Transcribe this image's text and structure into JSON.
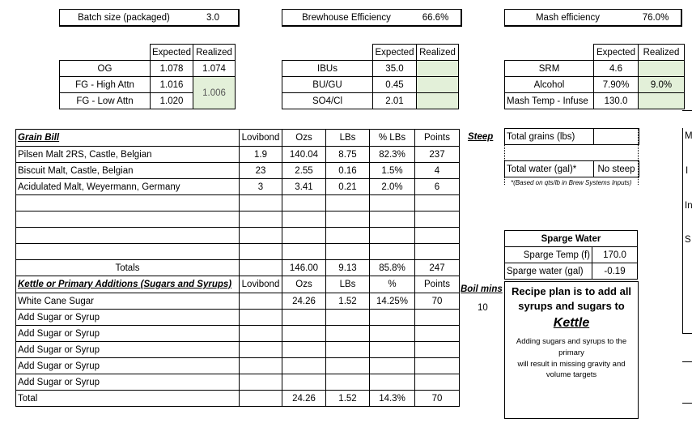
{
  "header": {
    "batch_size_label": "Batch size (packaged)",
    "batch_size_value": "3.0",
    "brewhouse_eff_label": "Brewhouse Efficiency",
    "brewhouse_eff_value": "66.6%",
    "mash_eff_label": "Mash efficiency",
    "mash_eff_value": "76.0%"
  },
  "gravity": {
    "col_expected": "Expected",
    "col_realized": "Realized",
    "og_label": "OG",
    "og_expected": "1.078",
    "og_realized": "1.074",
    "fg_high_label": "FG - High Attn",
    "fg_high_expected": "1.016",
    "fg_low_label": "FG - Low Attn",
    "fg_low_expected": "1.020",
    "fg_realized": "1.006"
  },
  "bitterness": {
    "col_expected": "Expected",
    "col_realized": "Realized",
    "ibu_label": "IBUs",
    "ibu_expected": "35.0",
    "bugu_label": "BU/GU",
    "bugu_expected": "0.45",
    "so4_label": "SO4/Cl",
    "so4_expected": "2.01"
  },
  "color": {
    "col_expected": "Expected",
    "col_realized": "Realized",
    "srm_label": "SRM",
    "srm_expected": "4.6",
    "alcohol_label": "Alcohol",
    "alcohol_expected": "7.90%",
    "alcohol_realized": "9.0%",
    "mash_temp_label": "Mash Temp - Infuse",
    "mash_temp_expected": "130.0"
  },
  "grain_bill": {
    "title": "Grain Bill",
    "col_lovibond": "Lovibond",
    "col_ozs": "Ozs",
    "col_lbs": "LBs",
    "col_pct": "% LBs",
    "col_points": "Points",
    "rows": [
      {
        "name": "Pilsen Malt 2RS, Castle, Belgian",
        "lovibond": "1.9",
        "ozs": "140.04",
        "lbs": "8.75",
        "pct": "82.3%",
        "points": "237"
      },
      {
        "name": "Biscuit Malt, Castle, Belgian",
        "lovibond": "23",
        "ozs": "2.55",
        "lbs": "0.16",
        "pct": "1.5%",
        "points": "4"
      },
      {
        "name": "Acidulated Malt, Weyermann, Germany",
        "lovibond": "3",
        "ozs": "3.41",
        "lbs": "0.21",
        "pct": "2.0%",
        "points": "6"
      }
    ],
    "totals_label": "Totals",
    "totals_ozs": "146.00",
    "totals_lbs": "9.13",
    "totals_pct": "85.8%",
    "totals_points": "247"
  },
  "steep": {
    "label": "Steep",
    "total_grains_label": "Total grains (lbs)",
    "total_water_label": "Total water (gal)*",
    "total_water_value": "No steep",
    "note": "*(Based on qts/lb in Brew Systems Inputs)"
  },
  "sparge": {
    "title": "Sparge Water",
    "temp_label": "Sparge Temp (f)",
    "temp_value": "170.0",
    "water_label": "Sparge water (gal)",
    "water_value": "-0.19"
  },
  "kettle": {
    "title": "Kettle or Primary Additions (Sugars and Syrups)",
    "col_lovibond": "Lovibond",
    "col_ozs": "Ozs",
    "col_lbs": "LBs",
    "col_pct": "%",
    "col_points": "Points",
    "boil_mins_label": "Boil mins",
    "rows": [
      {
        "name": "White Cane Sugar",
        "ozs": "24.26",
        "lbs": "1.52",
        "pct": "14.25%",
        "points": "70",
        "boil": "10"
      },
      {
        "name": "Add Sugar or Syrup"
      },
      {
        "name": "Add Sugar or Syrup"
      },
      {
        "name": "Add Sugar or Syrup"
      },
      {
        "name": "Add Sugar or Syrup"
      },
      {
        "name": "Add Sugar or Syrup"
      }
    ],
    "total_label": "Total",
    "total_ozs": "24.26",
    "total_lbs": "1.52",
    "total_pct": "14.3%",
    "total_points": "70"
  },
  "recipe_plan": {
    "line1": "Recipe plan is to add all",
    "line2": "syrups and sugars to",
    "target": "Kettle",
    "note1": "Adding sugars and syrups to the",
    "note2": "primary",
    "note3": "will result in missing gravity and",
    "note4": "volume targets"
  },
  "edge_fragments": {
    "m": "M",
    "i": "I",
    "in": "In",
    "s": "S"
  }
}
